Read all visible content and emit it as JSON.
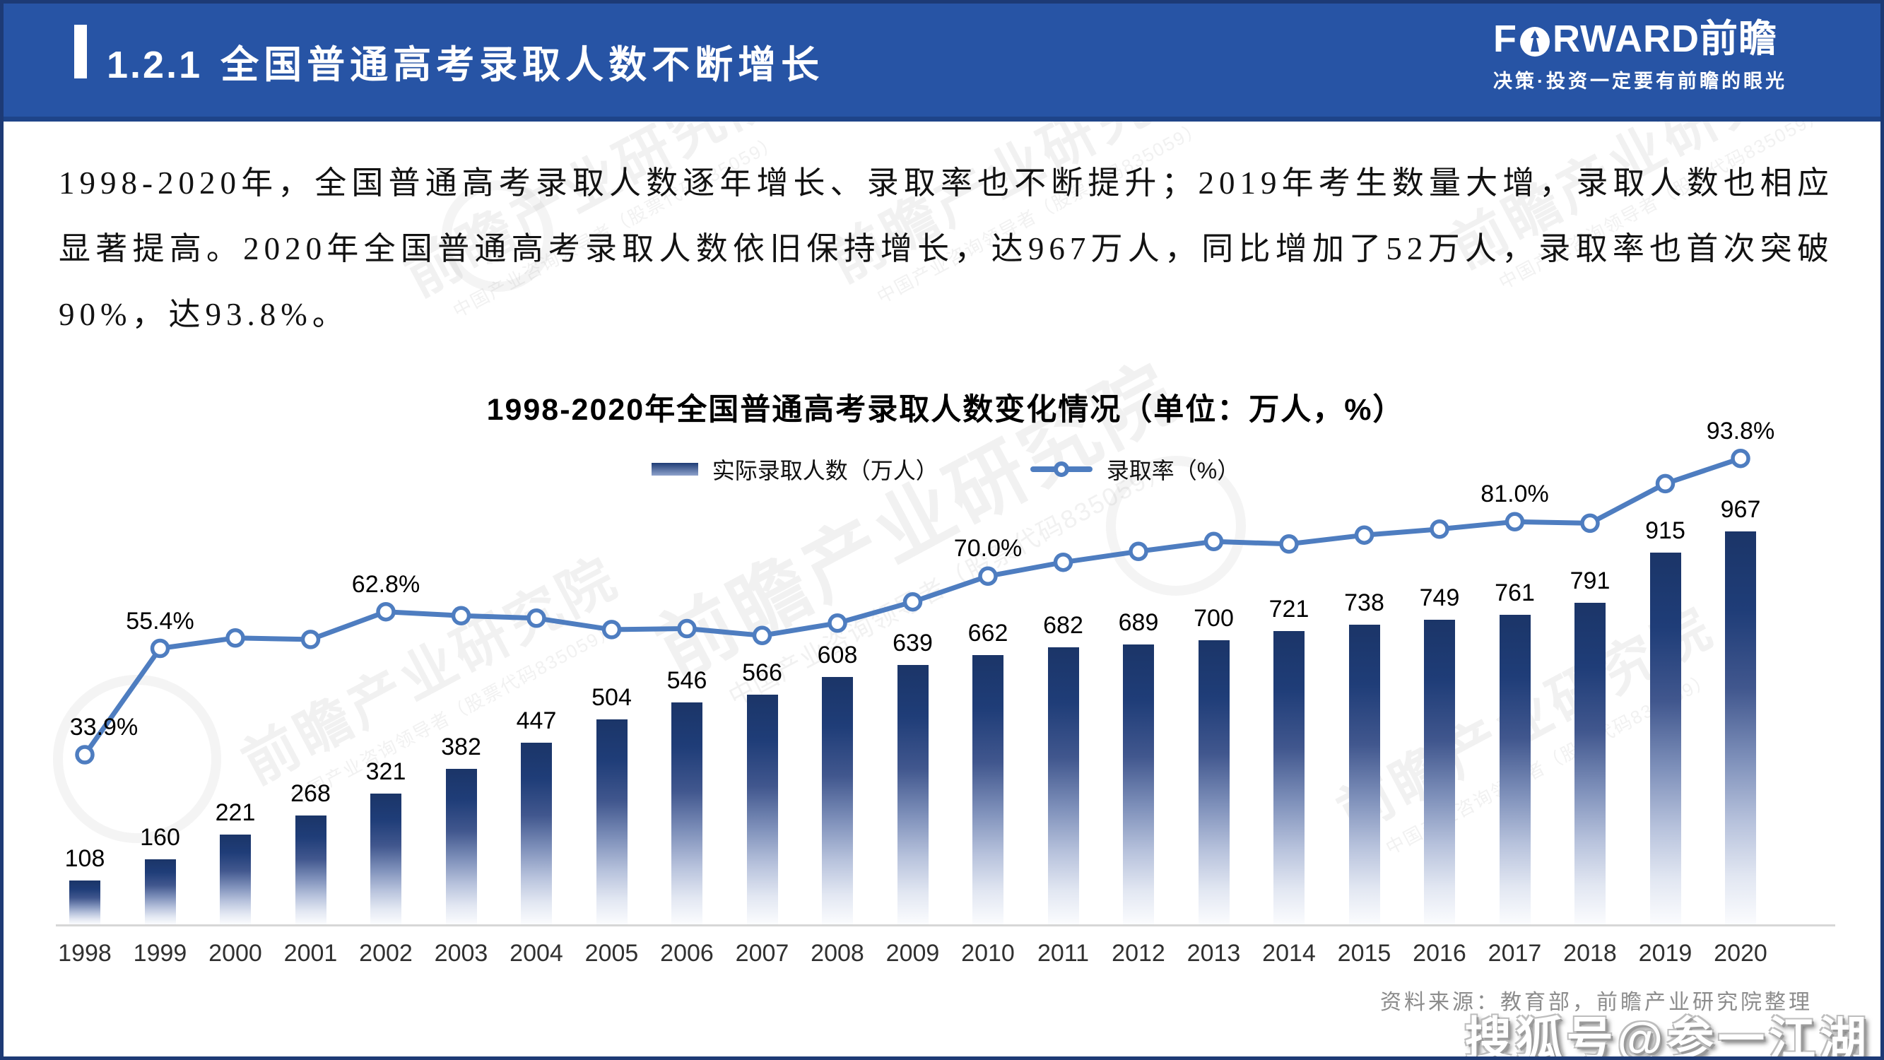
{
  "header": {
    "section_number": "1.2.1",
    "title": "全国普通高考录取人数不断增长",
    "logo_prefix": "F",
    "logo_suffix": "RWARD前瞻",
    "tagline": "决策·投资一定要有前瞻的眼光"
  },
  "body_paragraph": "1998-2020年，全国普通高考录取人数逐年增长、录取率也不断提升；2019年考生数量大增，录取人数也相应显著提高。2020年全国普通高考录取人数依旧保持增长，达967万人，同比增加了52万人，录取率也首次突破90%，达93.8%。",
  "chart_data": {
    "type": "bar+line",
    "title": "1998-2020年全国普通高考录取人数变化情况（单位：万人，%）",
    "legend": [
      "实际录取人数（万人）",
      "录取率（%）"
    ],
    "legend_position": "top",
    "grid": false,
    "categories": [
      1998,
      1999,
      2000,
      2001,
      2002,
      2003,
      2004,
      2005,
      2006,
      2007,
      2008,
      2009,
      2010,
      2011,
      2012,
      2013,
      2014,
      2015,
      2016,
      2017,
      2018,
      2019,
      2020
    ],
    "series": [
      {
        "name": "实际录取人数（万人）",
        "type": "bar",
        "values": [
          108,
          160,
          221,
          268,
          321,
          382,
          447,
          504,
          546,
          566,
          608,
          639,
          662,
          682,
          689,
          700,
          721,
          738,
          749,
          761,
          791,
          915,
          967
        ]
      },
      {
        "name": "录取率（%）",
        "type": "line",
        "values": [
          33.9,
          55.4,
          57.5,
          57.2,
          62.8,
          62.0,
          61.5,
          59.2,
          59.4,
          58.0,
          60.5,
          64.8,
          70.0,
          72.8,
          75.0,
          77.0,
          76.5,
          78.3,
          79.5,
          81.0,
          80.7,
          88.7,
          93.8
        ],
        "labeled_points": {
          "1998": "33.9%",
          "1999": "55.4%",
          "2002": "62.8%",
          "2010": "70.0%",
          "2017": "81.0%",
          "2020": "93.8%"
        }
      }
    ],
    "ylim_bar": [
      0,
      1200
    ],
    "ylim_rate": [
      0,
      100
    ],
    "colors": {
      "bar_top": "#1b3568",
      "bar_bottom": "#ffffff",
      "line": "#4e7dc0",
      "header_blue": "#2754a5"
    }
  },
  "footer": {
    "source": "资料来源：教育部，前瞻产业研究院整理"
  },
  "watermark": {
    "sohu": "搜狐号@参一江湖",
    "brand_line1": "前瞻产业研究院",
    "brand_line2": "中国产业咨询领导者（股票代码835059）"
  }
}
